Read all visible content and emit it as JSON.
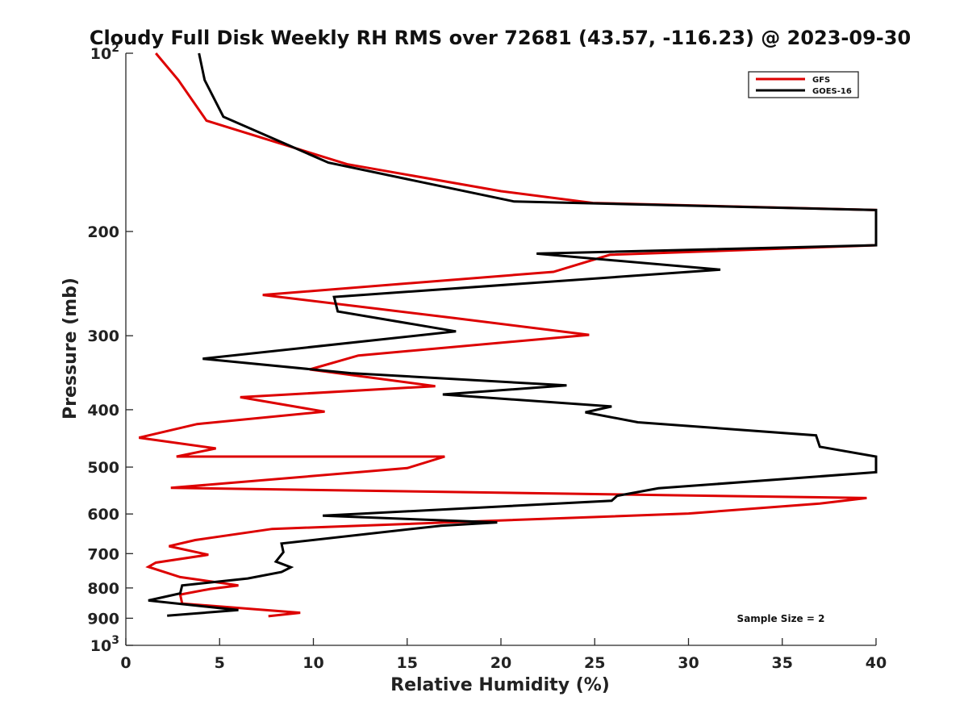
{
  "chart_data": {
    "type": "line",
    "title": "Cloudy Full Disk Weekly RH RMS over 72681 (43.57, -116.23) @ 2023-09-30",
    "xlabel": "Relative Humidity (%)",
    "ylabel": "Pressure (mb)",
    "xlim": [
      0,
      40
    ],
    "ylim": [
      100,
      1000
    ],
    "y_scale": "log",
    "y_reversed": true,
    "x_ticks": [
      0,
      5,
      10,
      15,
      20,
      25,
      30,
      35,
      40
    ],
    "x_tick_labels": [
      "0",
      "5",
      "10",
      "15",
      "20",
      "25",
      "30",
      "35",
      "40"
    ],
    "y_ticks": [
      100,
      200,
      300,
      400,
      500,
      600,
      700,
      800,
      900,
      1000
    ],
    "y_tick_labels": [
      {
        "base": "10",
        "exp": "2"
      },
      {
        "base": "200",
        "exp": ""
      },
      {
        "base": "300",
        "exp": ""
      },
      {
        "base": "400",
        "exp": ""
      },
      {
        "base": "500",
        "exp": ""
      },
      {
        "base": "600",
        "exp": ""
      },
      {
        "base": "700",
        "exp": ""
      },
      {
        "base": "800",
        "exp": ""
      },
      {
        "base": "900",
        "exp": ""
      },
      {
        "base": "10",
        "exp": "3"
      }
    ],
    "grid": false,
    "legend_position": "top-right",
    "annotation": "Sample Size = 2",
    "series": [
      {
        "name": "GFS",
        "color": "#dd0000",
        "x": [
          1.6,
          2.8,
          4.3,
          11.8,
          20.0,
          24.9,
          40.0,
          40.0,
          25.8,
          22.8,
          7.3,
          17.5,
          24.7,
          12.4,
          9.8,
          16.5,
          6.1,
          10.6,
          3.8,
          0.7,
          4.8,
          2.7,
          17.0,
          15.0,
          2.4,
          39.5,
          37.0,
          30.0,
          7.8,
          3.7,
          2.3,
          4.4,
          1.6,
          1.2,
          2.9,
          6.0,
          4.5,
          2.9,
          3.0,
          9.3,
          7.6
        ],
        "y": [
          100,
          111,
          130,
          154,
          171,
          179,
          184,
          211,
          219,
          234,
          256,
          280,
          299,
          324,
          342,
          365,
          381,
          403,
          423,
          446,
          465,
          480,
          480,
          502,
          542,
          564,
          576,
          599,
          636,
          664,
          680,
          703,
          725,
          737,
          767,
          792,
          803,
          821,
          850,
          881,
          893
        ]
      },
      {
        "name": "GOES-16",
        "color": "#000000",
        "x": [
          3.9,
          4.2,
          5.2,
          10.8,
          20.7,
          40.0,
          40.0,
          21.9,
          31.7,
          11.1,
          11.3,
          17.6,
          4.1,
          12.0,
          23.5,
          16.9,
          25.9,
          24.5,
          27.3,
          36.8,
          37.0,
          40.0,
          40.0,
          28.4,
          26.2,
          25.9,
          10.5,
          19.8,
          16.8,
          8.3,
          8.4,
          8.0,
          8.8,
          8.3,
          6.5,
          3.0,
          2.9,
          1.2,
          6.0,
          2.2
        ],
        "y": [
          100,
          111,
          128,
          153,
          178,
          184,
          211,
          218,
          232,
          258,
          273,
          295,
          328,
          347,
          364,
          377,
          395,
          404,
          420,
          442,
          462,
          480,
          510,
          543,
          559,
          570,
          604,
          620,
          628,
          673,
          696,
          722,
          738,
          752,
          771,
          792,
          817,
          840,
          872,
          891
        ]
      }
    ]
  }
}
